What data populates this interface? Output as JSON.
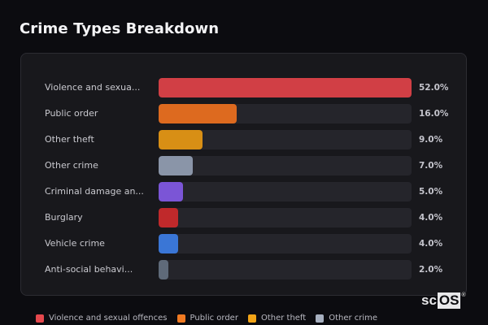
{
  "page": {
    "title": "Crime Types Breakdown"
  },
  "chart_data": {
    "type": "bar",
    "orientation": "horizontal",
    "title": "Crime Types Breakdown",
    "xlabel": "",
    "ylabel": "",
    "xlim": [
      0,
      52
    ],
    "grid": false,
    "categories": [
      "Violence and sexua...",
      "Public order",
      "Other theft",
      "Other crime",
      "Criminal damage an...",
      "Burglary",
      "Vehicle crime",
      "Anti-social behavi..."
    ],
    "values": [
      52.0,
      16.0,
      9.0,
      7.0,
      5.0,
      4.0,
      4.0,
      2.0
    ],
    "value_labels": [
      "52.0%",
      "16.0%",
      "9.0%",
      "7.0%",
      "5.0%",
      "4.0%",
      "4.0%",
      "2.0%"
    ],
    "colors": [
      "#d13f45",
      "#dd6a1f",
      "#d88f15",
      "#8a95a8",
      "#7b55d6",
      "#c0292b",
      "#3a76d6",
      "#5f6a79"
    ],
    "legend": {
      "position": "bottom",
      "entries": [
        {
          "label": "Violence and sexual offences",
          "color": "#e5484d"
        },
        {
          "label": "Public order",
          "color": "#f07a22"
        },
        {
          "label": "Other theft",
          "color": "#f2a417"
        },
        {
          "label": "Other crime",
          "color": "#a7b0c0"
        }
      ]
    }
  },
  "bars": [
    {
      "label": "Violence and sexua...",
      "pct_text": "52.0%"
    },
    {
      "label": "Public order",
      "pct_text": "16.0%"
    },
    {
      "label": "Other theft",
      "pct_text": "9.0%"
    },
    {
      "label": "Other crime",
      "pct_text": "7.0%"
    },
    {
      "label": "Criminal damage an...",
      "pct_text": "5.0%"
    },
    {
      "label": "Burglary",
      "pct_text": "4.0%"
    },
    {
      "label": "Vehicle crime",
      "pct_text": "4.0%"
    },
    {
      "label": "Anti-social behavi...",
      "pct_text": "2.0%"
    }
  ],
  "legend": {
    "items": [
      {
        "label": "Violence and sexual offences"
      },
      {
        "label": "Public order"
      },
      {
        "label": "Other theft"
      },
      {
        "label": "Other crime"
      }
    ]
  },
  "watermark": {
    "prefix": "sc",
    "boxed": "OS",
    "mark": "®"
  }
}
